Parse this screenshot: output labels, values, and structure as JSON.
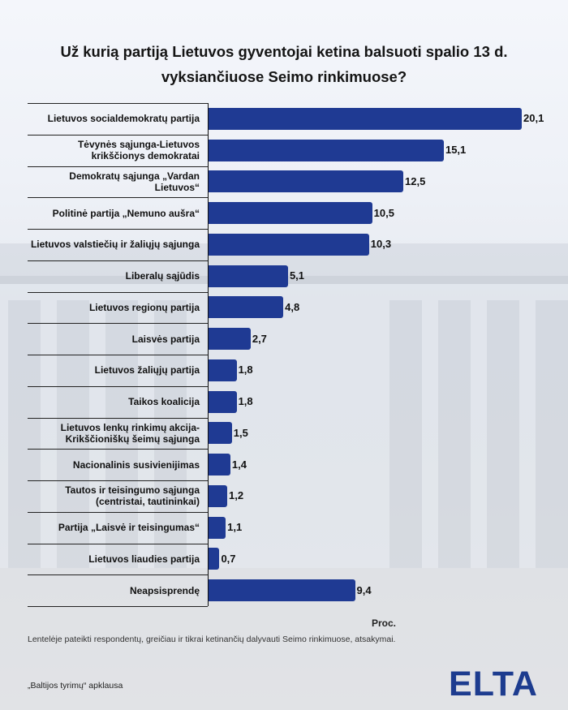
{
  "title": "Už kurią partiją Lietuvos gyventojai ketina balsuoti spalio 13 d. vyksiančiuose Seimo rinkimuose?",
  "chart_data": {
    "type": "bar",
    "orientation": "horizontal",
    "categories": [
      "Lietuvos socialdemokratų partija",
      "Tėvynės sąjunga-Lietuvos krikščionys demokratai",
      "Demokratų sąjunga „Vardan Lietuvos“",
      "Politinė partija „Nemuno aušra“",
      "Lietuvos valstiečių ir žaliųjų sąjunga",
      "Liberalų sąjūdis",
      "Lietuvos regionų partija",
      "Laisvės partija",
      "Lietuvos žaliųjų partija",
      "Taikos koalicija",
      "Lietuvos lenkų rinkimų akcija-Krikščioniškų šeimų sąjunga",
      "Nacionalinis susivienijimas",
      "Tautos ir teisingumo sąjunga (centristai, tautininkai)",
      "Partija „Laisvė ir teisingumas“",
      "Lietuvos liaudies partija",
      "Neapsisprendę"
    ],
    "values": [
      20.1,
      15.1,
      12.5,
      10.5,
      10.3,
      5.1,
      4.8,
      2.7,
      1.8,
      1.8,
      1.5,
      1.4,
      1.2,
      1.1,
      0.7,
      9.4
    ],
    "value_labels": [
      "20,1",
      "15,1",
      "12,5",
      "10,5",
      "10,3",
      "5,1",
      "4,8",
      "2,7",
      "1,8",
      "1,8",
      "1,5",
      "1,4",
      "1,2",
      "1,1",
      "0,7",
      "9,4"
    ],
    "xlabel": "Proc.",
    "xlim": [
      0,
      20.1
    ],
    "bar_color": "#1f3a93",
    "grid": false
  },
  "note": "Lentelėje pateikti respondentų, greičiau ir tikrai ketinančių dalyvauti Seimo rinkimuose, atsakymai.",
  "source": "„Baltijos tyrimų“ apklausa",
  "logo_text": "ELTA",
  "colors": {
    "bar": "#1f3a93",
    "logo": "#1d3c8f"
  }
}
